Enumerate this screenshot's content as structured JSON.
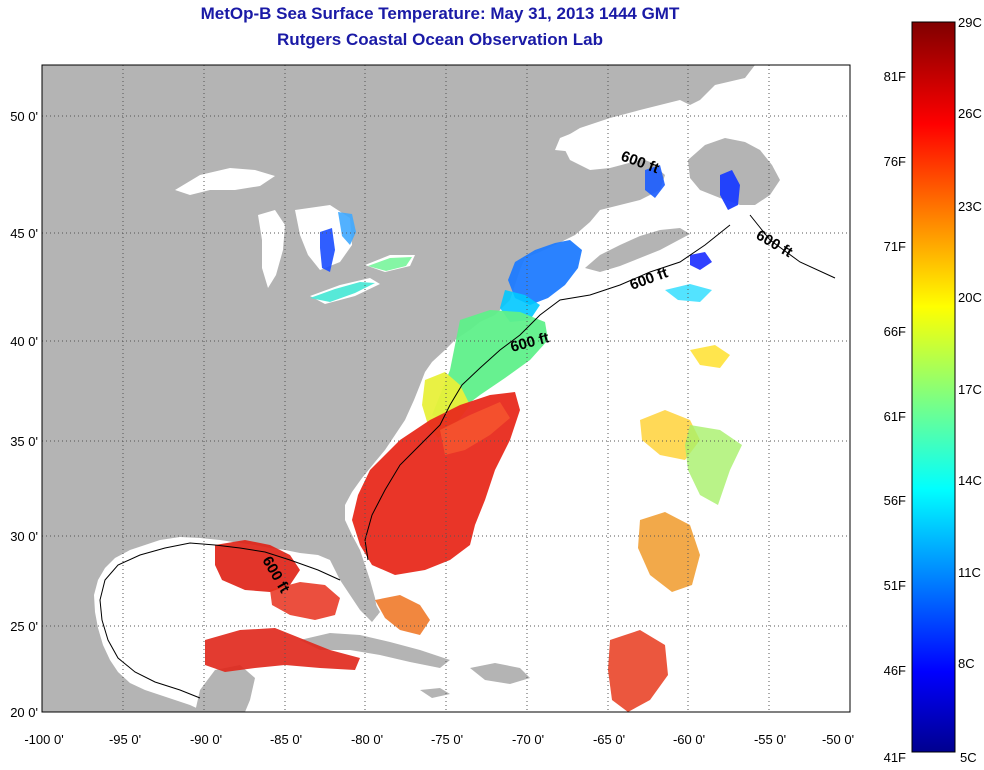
{
  "title": "MetOp-B Sea Surface Temperature:  May 31, 2013 1444 GMT",
  "subtitle": "Rutgers Coastal Ocean Observation Lab",
  "lon_ticks": [
    "-100 0'",
    "-95 0'",
    "-90 0'",
    "-85 0'",
    "-80 0'",
    "-75 0'",
    "-70 0'",
    "-65 0'",
    "-60 0'",
    "-55 0'",
    "-50 0'"
  ],
  "lat_ticks": [
    "50 0'",
    "45 0'",
    "40 0'",
    "35 0'",
    "30 0'",
    "25 0'",
    "20 0'"
  ],
  "contour_label": "600 ft",
  "colorbar": {
    "celsius": [
      "29C",
      "26C",
      "23C",
      "20C",
      "17C",
      "14C",
      "11C",
      "8C",
      "5C"
    ],
    "fahrenheit": [
      "81F",
      "76F",
      "71F",
      "66F",
      "61F",
      "56F",
      "51F",
      "46F",
      "41F"
    ]
  },
  "colors": {
    "land": "#b4b4b4",
    "ocean": "#ffffff",
    "title": "#1a1aa6"
  }
}
